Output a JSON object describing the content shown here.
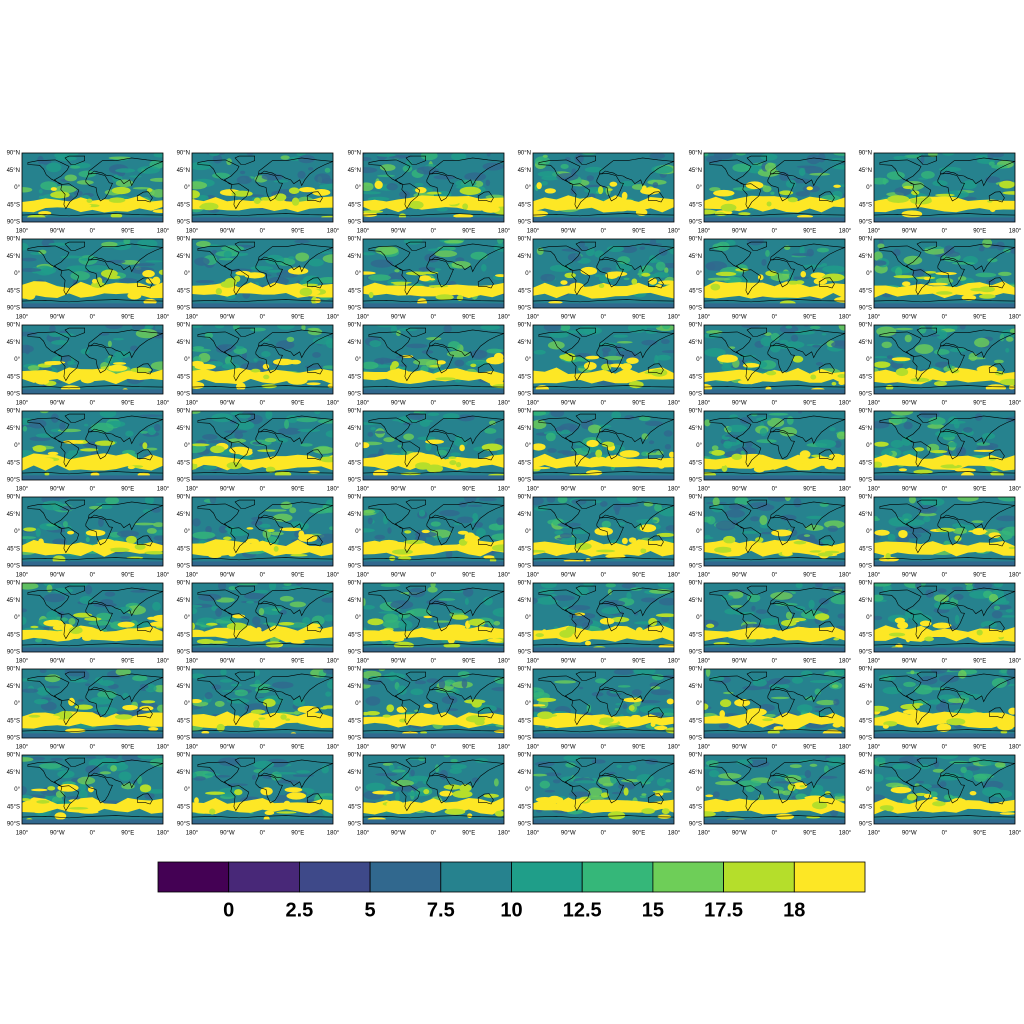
{
  "axis_labels": {
    "lat": [
      "90°N",
      "45°N",
      "0°",
      "45°S",
      "90°S"
    ],
    "lon": [
      "180°",
      "90°W",
      "0°",
      "90°E",
      "180°"
    ]
  },
  "colorbar": {
    "colors": [
      "#440154",
      "#482878",
      "#3e4989",
      "#31688e",
      "#26828e",
      "#1f9e89",
      "#35b779",
      "#6ece58",
      "#b5de2b",
      "#fde725"
    ],
    "labels": [
      0,
      2.5,
      5,
      7.5,
      10,
      12.5,
      15,
      17.5,
      18
    ]
  }
}
